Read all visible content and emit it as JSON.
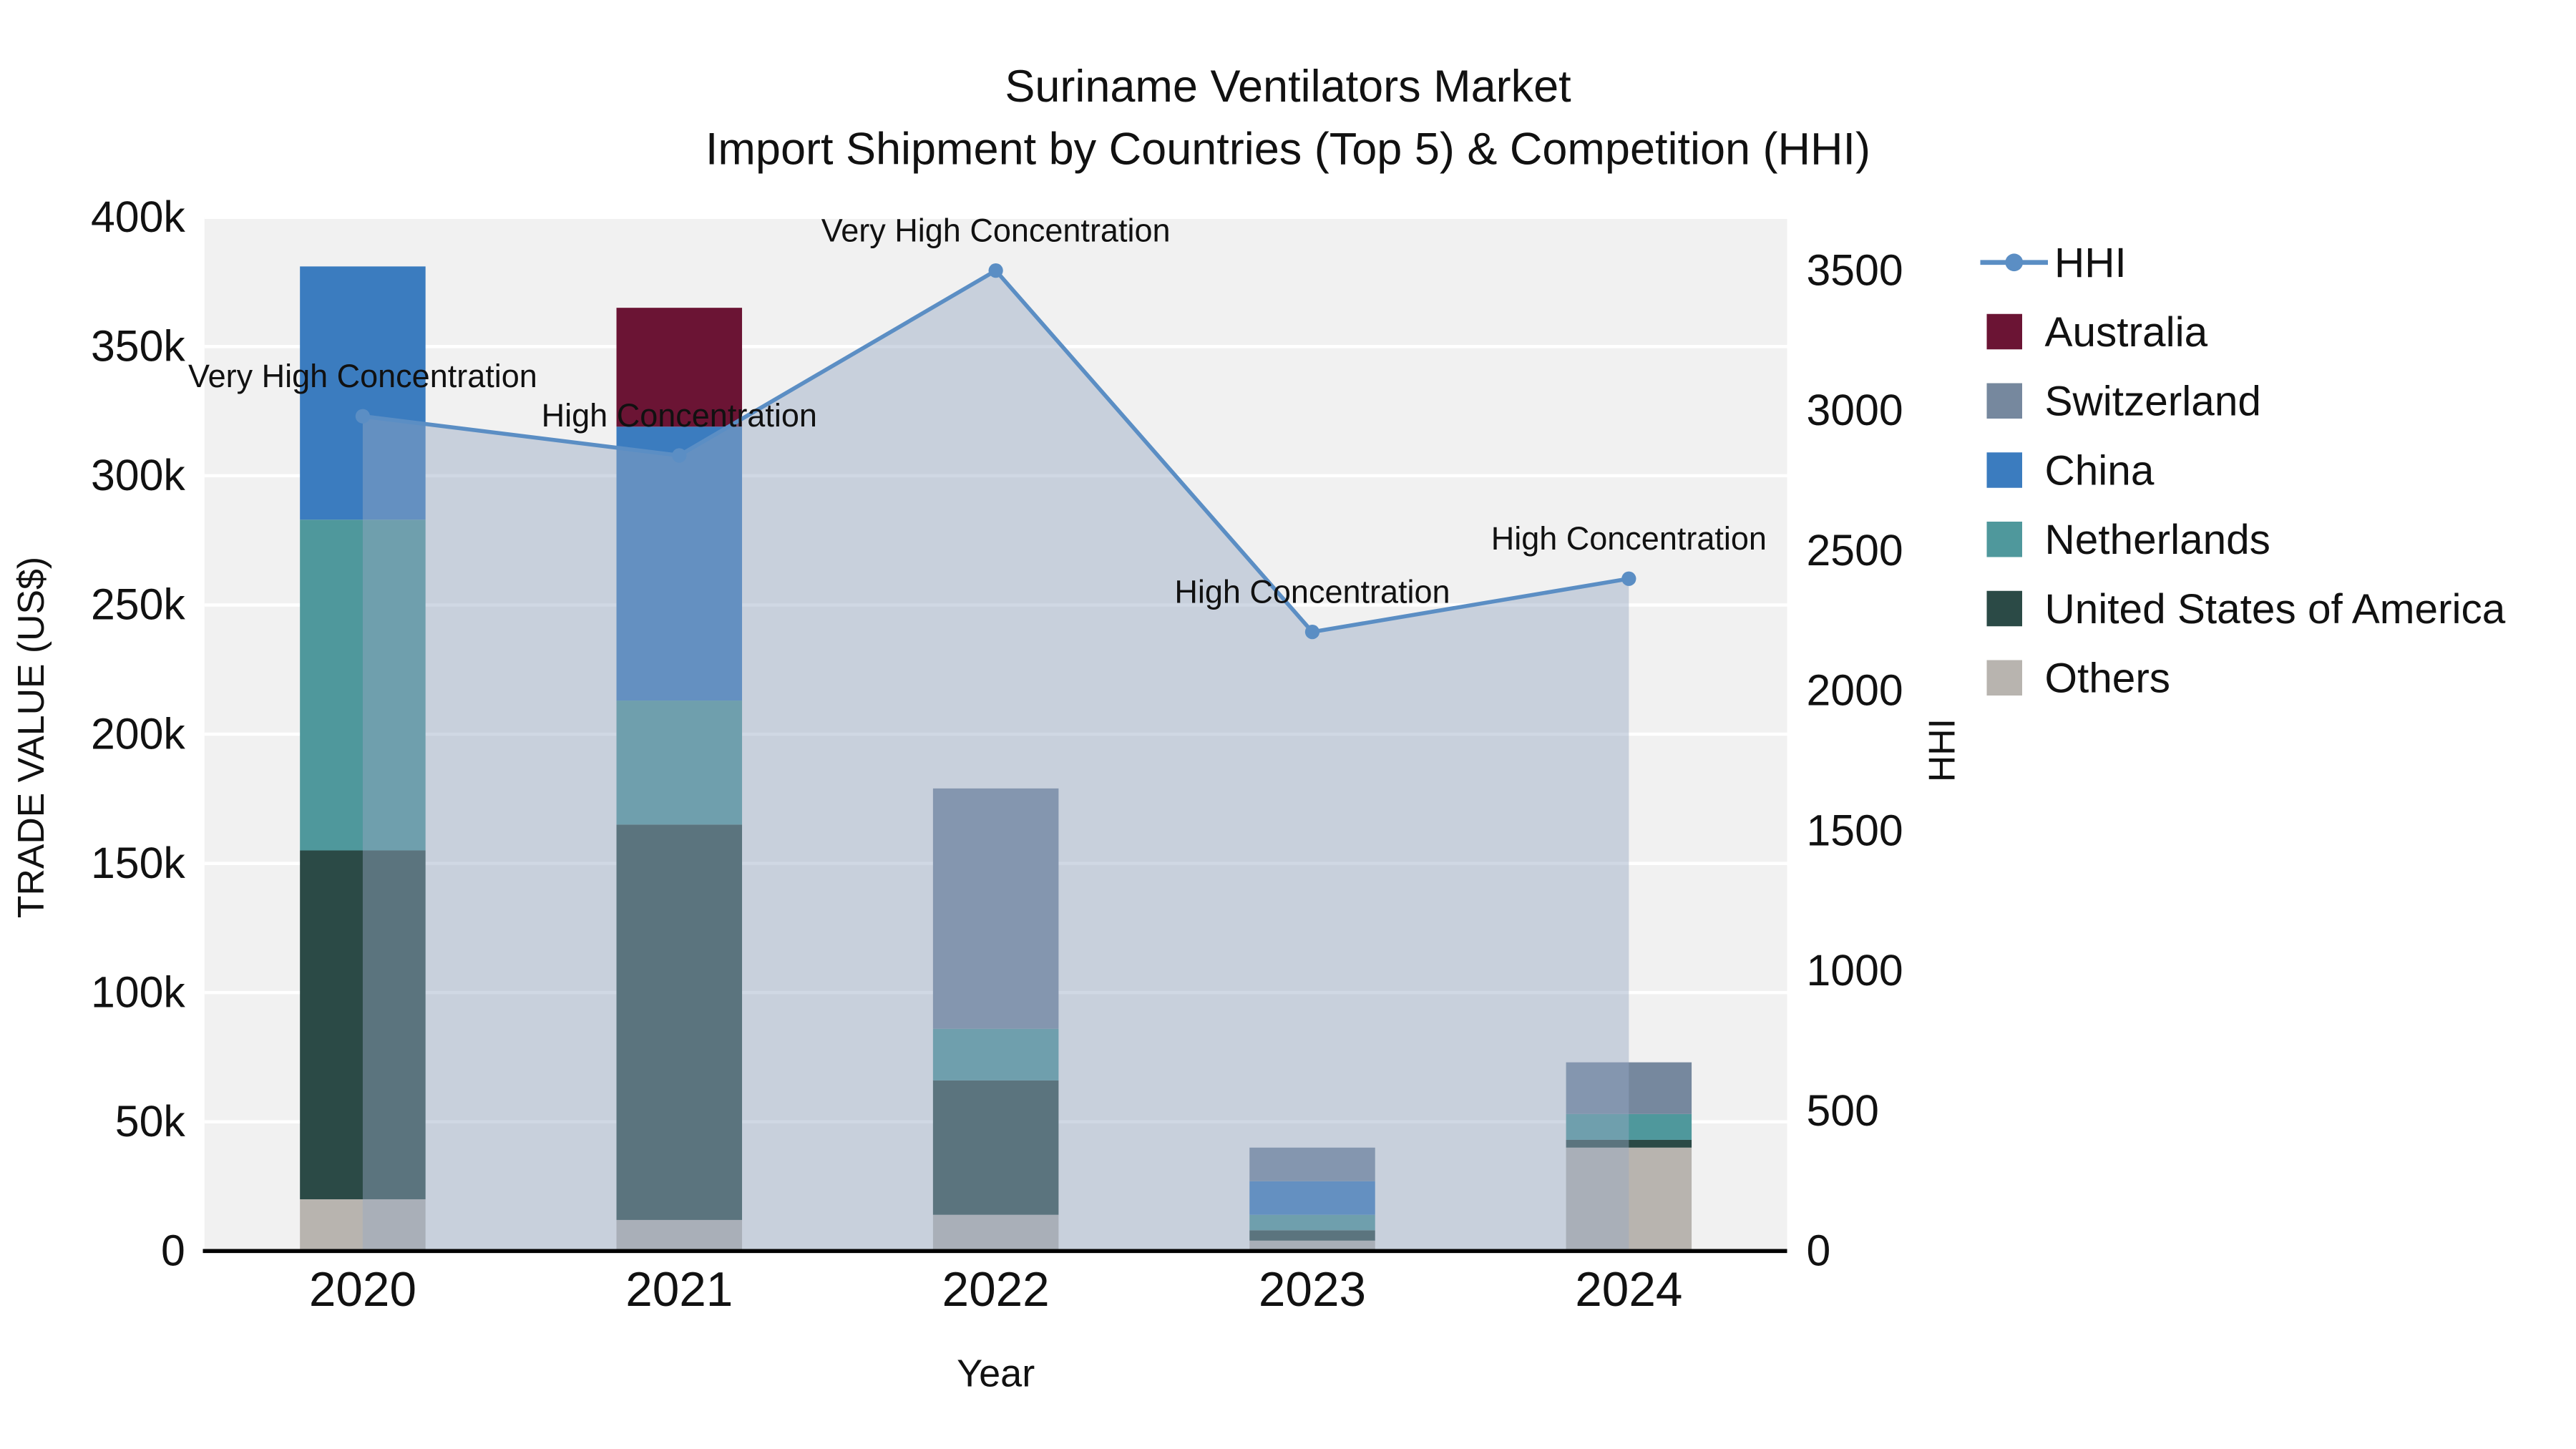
{
  "title": {
    "line1": "Suriname Ventilators Market",
    "line2": "Import Shipment by Countries (Top 5) & Competition (HHI)"
  },
  "axes": {
    "left_label": "TRADE VALUE (US$)",
    "right_label": "HHI",
    "x_label": "Year"
  },
  "colors": {
    "plot_background": "#f1f1f1",
    "gridline": "#ffffff",
    "axis_line": "#000000",
    "text": "#111111"
  },
  "chart_data": {
    "type": "stacked-bar+line",
    "categories": [
      "2020",
      "2021",
      "2022",
      "2023",
      "2024"
    ],
    "bar_series": [
      {
        "name": "Others",
        "color": "#b8b4af",
        "values": [
          20000,
          12000,
          14000,
          4000,
          40000
        ]
      },
      {
        "name": "United States of America",
        "color": "#2b4a46",
        "values": [
          135000,
          153000,
          52000,
          4000,
          3000
        ]
      },
      {
        "name": "Netherlands",
        "color": "#4f989c",
        "values": [
          128000,
          48000,
          20000,
          6000,
          10000
        ]
      },
      {
        "name": "China",
        "color": "#3b7cbf",
        "values": [
          98000,
          106000,
          0,
          13000,
          0
        ]
      },
      {
        "name": "Switzerland",
        "color": "#76889e",
        "values": [
          0,
          0,
          93000,
          13000,
          20000
        ]
      },
      {
        "name": "Australia",
        "color": "#6b1434",
        "values": [
          0,
          46000,
          0,
          0,
          0
        ]
      }
    ],
    "line_series": {
      "name": "HHI",
      "color": "#5b8ec4",
      "area_fill": "rgba(150,168,195,0.45)",
      "values": [
        2980,
        2840,
        3500,
        2210,
        2400
      ]
    },
    "annotations": [
      "Very High Concentration",
      "High Concentration",
      "Very High Concentration",
      "High Concentration",
      "High Concentration"
    ],
    "y_axis_left": {
      "tick_labels": [
        "0",
        "50k",
        "100k",
        "150k",
        "200k",
        "250k",
        "300k",
        "350k",
        "400k"
      ],
      "tick_values": [
        0,
        50000,
        100000,
        150000,
        200000,
        250000,
        300000,
        350000,
        400000
      ],
      "max": 400000
    },
    "y_axis_right": {
      "tick_labels": [
        "0",
        "500",
        "1000",
        "1500",
        "2000",
        "2500",
        "3000",
        "3500"
      ],
      "tick_values": [
        0,
        500,
        1000,
        1500,
        2000,
        2500,
        3000,
        3500
      ],
      "max": 3690
    },
    "legend": {
      "position": "right",
      "items": [
        "HHI",
        "Australia",
        "Switzerland",
        "China",
        "Netherlands",
        "United States of America",
        "Others"
      ]
    }
  }
}
